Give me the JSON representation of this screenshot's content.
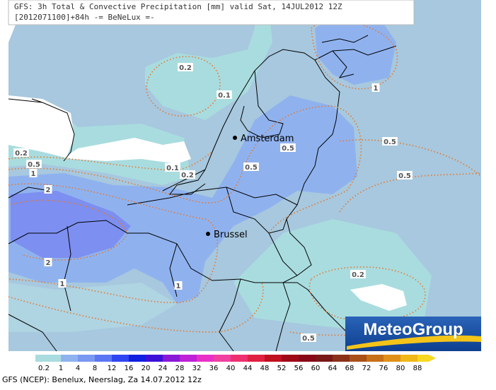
{
  "header": {
    "line1": "GFS: 3h Total & Convective Precipitation [mm] valid Sat, 14JUL2012 12Z",
    "line2": "[2012071100]+84h -= BeNeLux =-"
  },
  "cities": [
    {
      "label": "Amsterdam"
    },
    {
      "label": "Brussel"
    }
  ],
  "contour_labels": [
    "0.2",
    "0.1",
    "1",
    "0.2",
    "0.5",
    "1",
    "0.1",
    "0.2",
    "0.5",
    "0.5",
    "0.5",
    "0.5",
    "2",
    "2",
    "1",
    "1",
    "0.2",
    "0.5"
  ],
  "logo": "MeteoGroup",
  "legend": {
    "items": [
      {
        "label": "0.2",
        "color": "#a9dcdf"
      },
      {
        "label": "1",
        "color": "#8fb2ef"
      },
      {
        "label": "4",
        "color": "#7a98f2"
      },
      {
        "label": "8",
        "color": "#5b76f4"
      },
      {
        "label": "12",
        "color": "#3045f2"
      },
      {
        "label": "16",
        "color": "#1020e0"
      },
      {
        "label": "20",
        "color": "#3d10d8"
      },
      {
        "label": "24",
        "color": "#8a18d8"
      },
      {
        "label": "28",
        "color": "#c020d8"
      },
      {
        "label": "32",
        "color": "#e830c8"
      },
      {
        "label": "36",
        "color": "#f040a0"
      },
      {
        "label": "40",
        "color": "#ee3070"
      },
      {
        "label": "44",
        "color": "#e02040"
      },
      {
        "label": "48",
        "color": "#c01020"
      },
      {
        "label": "52",
        "color": "#a00818"
      },
      {
        "label": "56",
        "color": "#880818"
      },
      {
        "label": "60",
        "color": "#7a1818"
      },
      {
        "label": "64",
        "color": "#8a3018"
      },
      {
        "label": "68",
        "color": "#a85018"
      },
      {
        "label": "72",
        "color": "#c87018"
      },
      {
        "label": "76",
        "color": "#e09018"
      },
      {
        "label": "80",
        "color": "#f0b818"
      },
      {
        "label": "88",
        "color": "#f8d820"
      }
    ]
  },
  "footer": "GFS (NCEP): Benelux, Neerslag, Za 14.07.2012 12z"
}
